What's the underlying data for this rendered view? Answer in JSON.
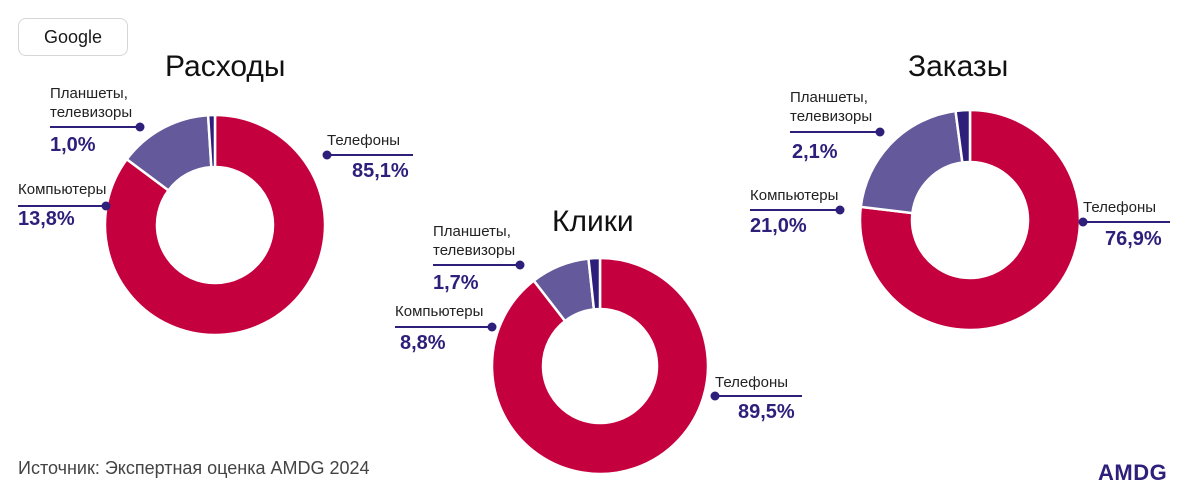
{
  "badge": "Google",
  "source": "Источник: Экспертная оценка AMDG 2024",
  "logo": "AMDG",
  "colors": {
    "phones": "#c5003e",
    "computers": "#645a9b",
    "tablets": "#2e1f7a",
    "leader": "#2e1f7a"
  },
  "chart_data": [
    {
      "type": "pie",
      "donut": true,
      "title": "Расходы",
      "slices": [
        {
          "label": "Телефоны",
          "value": 85.1,
          "value_label": "85,1%"
        },
        {
          "label": "Компьютеры",
          "value": 13.8,
          "value_label": "13,8%"
        },
        {
          "label": "Планшеты, телевизоры",
          "value": 1.0,
          "value_label": "1,0%"
        }
      ]
    },
    {
      "type": "pie",
      "donut": true,
      "title": "Клики",
      "slices": [
        {
          "label": "Телефоны",
          "value": 89.5,
          "value_label": "89,5%"
        },
        {
          "label": "Компьютеры",
          "value": 8.8,
          "value_label": "8,8%"
        },
        {
          "label": "Планшеты, телевизоры",
          "value": 1.7,
          "value_label": "1,7%"
        }
      ]
    },
    {
      "type": "pie",
      "donut": true,
      "title": "Заказы",
      "slices": [
        {
          "label": "Телефоны",
          "value": 76.9,
          "value_label": "76,9%"
        },
        {
          "label": "Компьютеры",
          "value": 21.0,
          "value_label": "21,0%"
        },
        {
          "label": "Планшеты, телевизоры",
          "value": 2.1,
          "value_label": "2,1%"
        }
      ]
    }
  ],
  "labels": {
    "tablets_line1": "Планшеты,",
    "tablets_line2": "телевизоры"
  }
}
